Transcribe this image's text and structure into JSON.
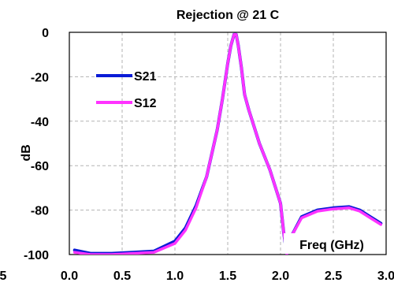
{
  "chart_data": {
    "type": "line",
    "title": "Rejection @ 21 C",
    "xlabel": "Freq (GHz)",
    "ylabel": "dB",
    "xlim": [
      0.0,
      3.0
    ],
    "ylim": [
      -100,
      0
    ],
    "x_ticks": [
      "0.0",
      "0.5",
      "1.0",
      "1.5",
      "2.0",
      "2.5",
      "3.0"
    ],
    "x_tick_values": [
      0.0,
      0.5,
      1.0,
      1.5,
      2.0,
      2.5,
      3.0
    ],
    "left_edge_tick": "5",
    "y_ticks": [
      "0",
      "-20",
      "-40",
      "-60",
      "-80",
      "-100"
    ],
    "y_tick_values": [
      0,
      -20,
      -40,
      -60,
      -80,
      -100
    ],
    "grid": true,
    "legend_position": "upper-left",
    "series": [
      {
        "name": "S21",
        "color": "#0a1bd6",
        "x": [
          0.05,
          0.2,
          0.4,
          0.6,
          0.8,
          1.0,
          1.1,
          1.2,
          1.3,
          1.4,
          1.45,
          1.5,
          1.53,
          1.56,
          1.58,
          1.6,
          1.63,
          1.66,
          1.7,
          1.8,
          1.9,
          2.0,
          2.03,
          2.06,
          2.1,
          2.2,
          2.35,
          2.5,
          2.65,
          2.75,
          2.85,
          2.95
        ],
        "y": [
          -98,
          -99.5,
          -99.5,
          -99,
          -98.5,
          -94,
          -88,
          -78,
          -65,
          -44,
          -30,
          -14,
          -6,
          -1,
          -1,
          -6,
          -16,
          -28,
          -35,
          -50,
          -62,
          -77,
          -90,
          -100,
          -92,
          -83,
          -80,
          -79,
          -78.5,
          -80,
          -83,
          -86
        ]
      },
      {
        "name": "S12",
        "color": "#ff33ff",
        "x": [
          0.05,
          0.2,
          0.4,
          0.6,
          0.8,
          1.0,
          1.1,
          1.2,
          1.3,
          1.4,
          1.45,
          1.5,
          1.53,
          1.56,
          1.58,
          1.6,
          1.63,
          1.66,
          1.7,
          1.8,
          1.9,
          2.0,
          2.03,
          2.06,
          2.1,
          2.2,
          2.35,
          2.5,
          2.65,
          2.75,
          2.85,
          2.95
        ],
        "y": [
          -99,
          -100,
          -100,
          -99.5,
          -99,
          -95,
          -89,
          -79,
          -65,
          -44,
          -30,
          -14,
          -6,
          -1,
          -1,
          -6,
          -16,
          -28,
          -35,
          -50,
          -62,
          -77,
          -90,
          -100,
          -92,
          -83.5,
          -80.5,
          -79.5,
          -79,
          -80.5,
          -83.5,
          -86.5
        ]
      }
    ]
  }
}
